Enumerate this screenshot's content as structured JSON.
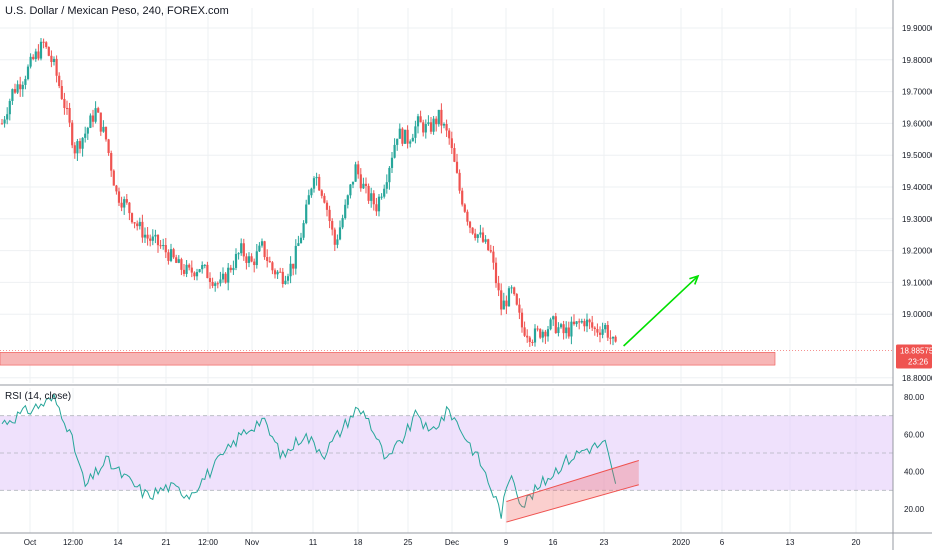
{
  "header": {
    "title": "U.S. Dollar / Mexican Peso, 240, FOREX.com"
  },
  "rsi_header": {
    "title": "RSI (14, close)"
  },
  "price_badge": {
    "value": "18.88575",
    "countdown": "23:26",
    "color": "#ef5350"
  },
  "colors": {
    "up": "#26a69a",
    "down": "#ef5350",
    "rsi_line": "#26a69a",
    "rsi_band": "#e1c8fa",
    "support_zone": "#f7b6b6",
    "arrow": "#00e000",
    "wedge": "#f08080"
  },
  "chart_data": [
    {
      "type": "candlestick",
      "title": "U.S. Dollar / Mexican Peso, 240, FOREX.com",
      "ylim": [
        18.8,
        19.93
      ],
      "y_ticks": [
        "19.90000",
        "19.80000",
        "19.70000",
        "19.60000",
        "19.50000",
        "19.40000",
        "19.30000",
        "19.20000",
        "19.10000",
        "19.00000",
        "18.80000"
      ],
      "close_path": [
        [
          0,
          19.6
        ],
        [
          1,
          19.7
        ],
        [
          2,
          19.74
        ],
        [
          3,
          19.8
        ],
        [
          4,
          19.85
        ],
        [
          5,
          19.78
        ],
        [
          6,
          19.66
        ],
        [
          7,
          19.52
        ],
        [
          8,
          19.57
        ],
        [
          9,
          19.64
        ],
        [
          10,
          19.55
        ],
        [
          11,
          19.38
        ],
        [
          12,
          19.34
        ],
        [
          13,
          19.28
        ],
        [
          14,
          19.24
        ],
        [
          15,
          19.22
        ],
        [
          16,
          19.19
        ],
        [
          17,
          19.15
        ],
        [
          18,
          19.13
        ],
        [
          19,
          19.15
        ],
        [
          20,
          19.12
        ],
        [
          21,
          19.09
        ],
        [
          22,
          19.15
        ],
        [
          23,
          19.2
        ],
        [
          24,
          19.16
        ],
        [
          25,
          19.21
        ],
        [
          26,
          19.14
        ],
        [
          27,
          19.12
        ],
        [
          28,
          19.16
        ],
        [
          29,
          19.28
        ],
        [
          30,
          19.45
        ],
        [
          31,
          19.37
        ],
        [
          32,
          19.22
        ],
        [
          33,
          19.33
        ],
        [
          34,
          19.46
        ],
        [
          35,
          19.38
        ],
        [
          36,
          19.34
        ],
        [
          37,
          19.44
        ],
        [
          38,
          19.57
        ],
        [
          39,
          19.55
        ],
        [
          40,
          19.6
        ],
        [
          41,
          19.58
        ],
        [
          42,
          19.62
        ],
        [
          43,
          19.55
        ],
        [
          44,
          19.39
        ],
        [
          45,
          19.28
        ],
        [
          46,
          19.24
        ],
        [
          47,
          19.19
        ],
        [
          48,
          19.02
        ],
        [
          49,
          19.07
        ],
        [
          50,
          18.96
        ],
        [
          51,
          18.93
        ],
        [
          52,
          18.95
        ],
        [
          53,
          18.97
        ],
        [
          54,
          18.94
        ],
        [
          55,
          18.96
        ],
        [
          56,
          18.98
        ],
        [
          57,
          18.95
        ],
        [
          58,
          18.96
        ],
        [
          59,
          18.89
        ]
      ],
      "support_zone": [
        18.84,
        18.88
      ],
      "current_price": 18.88575,
      "projection_arrow": {
        "from": [
          59,
          18.9
        ],
        "to": [
          65,
          19.12
        ]
      }
    },
    {
      "type": "line",
      "title": "RSI (14, close)",
      "ylim": [
        12,
        86
      ],
      "y_ticks": [
        "80.00",
        "60.00",
        "40.00",
        "20.00"
      ],
      "band": [
        30,
        70
      ],
      "midline": 50,
      "values_path": [
        [
          0,
          66
        ],
        [
          3,
          74
        ],
        [
          5,
          79
        ],
        [
          6,
          69
        ],
        [
          7,
          52
        ],
        [
          8,
          32
        ],
        [
          10,
          46
        ],
        [
          12,
          36
        ],
        [
          14,
          27
        ],
        [
          16,
          32
        ],
        [
          18,
          28
        ],
        [
          20,
          40
        ],
        [
          23,
          60
        ],
        [
          25,
          68
        ],
        [
          27,
          48
        ],
        [
          29,
          60
        ],
        [
          31,
          50
        ],
        [
          34,
          73
        ],
        [
          35,
          71
        ],
        [
          37,
          45
        ],
        [
          39,
          62
        ],
        [
          40,
          72
        ],
        [
          41,
          60
        ],
        [
          43,
          73
        ],
        [
          44,
          64
        ],
        [
          46,
          45
        ],
        [
          48,
          18
        ],
        [
          49,
          40
        ],
        [
          50,
          22
        ],
        [
          52,
          34
        ],
        [
          54,
          45
        ],
        [
          56,
          52
        ],
        [
          58,
          55
        ],
        [
          59,
          32
        ]
      ],
      "wedge": {
        "lower": [
          [
            48.5,
            13
          ],
          [
            59.5,
            33
          ]
        ],
        "upper": [
          [
            48.5,
            24
          ],
          [
            59.5,
            46
          ]
        ]
      }
    }
  ],
  "x_axis": {
    "labels": [
      "Oct",
      "12:00",
      "14",
      "21",
      "12:00",
      "Nov",
      "11",
      "18",
      "25",
      "Dec",
      "9",
      "16",
      "23",
      "2020",
      "6",
      "13",
      "20"
    ]
  }
}
